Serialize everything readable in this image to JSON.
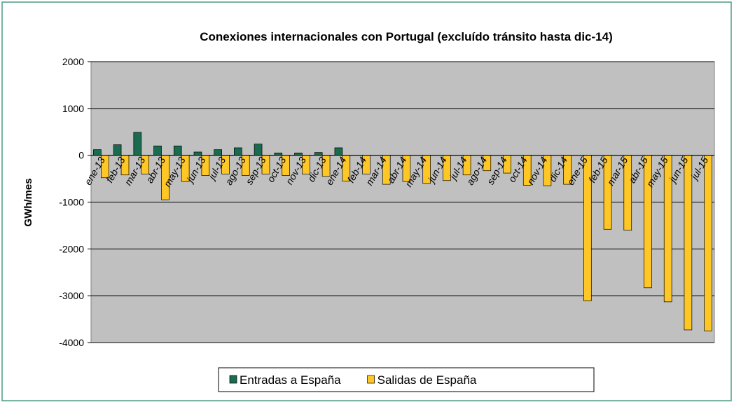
{
  "chart_data": {
    "type": "bar",
    "title": "Conexiones internacionales con Portugal (excluído tránsito hasta dic-14)",
    "y_label": "GWh/mes",
    "categories": [
      "ene-13",
      "feb-13",
      "mar-13",
      "abr-13",
      "may-13",
      "jun-13",
      "jul-13",
      "ago-13",
      "sep-13",
      "oct-13",
      "nov-13",
      "dic-13",
      "ene-14",
      "feb-14",
      "mar-14",
      "abr-14",
      "may-14",
      "jun-14",
      "jul-14",
      "ago-14",
      "sep-14",
      "oct-14",
      "nov-14",
      "dic-14",
      "ene-15",
      "feb-15",
      "mar-15",
      "abr-15",
      "may-15",
      "jun-15",
      "jul-15"
    ],
    "series": [
      {
        "name": "Entradas a España",
        "color": "#1a6b4f",
        "values": [
          120,
          225,
          490,
          200,
          200,
          70,
          120,
          160,
          240,
          50,
          50,
          60,
          160,
          0,
          0,
          0,
          0,
          0,
          0,
          0,
          0,
          0,
          0,
          0,
          0,
          0,
          0,
          0,
          0,
          0,
          0
        ]
      },
      {
        "name": "Salidas de España",
        "color": "#ffc726",
        "values": [
          -480,
          -420,
          -400,
          -950,
          -560,
          -430,
          -400,
          -430,
          -400,
          -430,
          -400,
          -450,
          -550,
          -400,
          -620,
          -560,
          -600,
          -540,
          -420,
          -330,
          -380,
          -640,
          -650,
          -620,
          -3110,
          -1580,
          -1600,
          -2830,
          -3130,
          -3730,
          -3750
        ]
      }
    ],
    "ylim": [
      -4000,
      2000
    ],
    "yticks": [
      -4000,
      -3000,
      -2000,
      -1000,
      0,
      1000,
      2000
    ],
    "grid": true
  }
}
